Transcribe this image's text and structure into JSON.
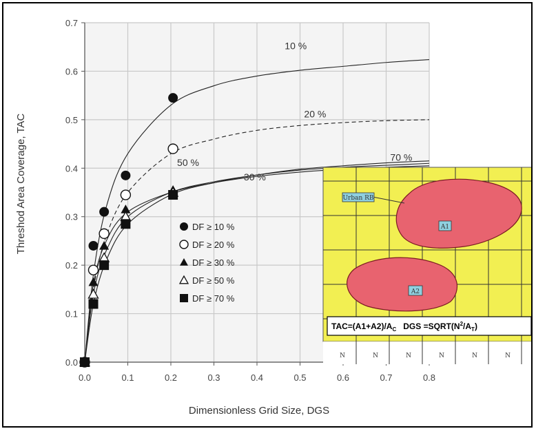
{
  "chart_data": {
    "type": "scatter",
    "xlabel": "Dimensionless Grid Size, DGS",
    "ylabel": "Threshod Area Coverage, TAC",
    "xlim": [
      0.0,
      0.8
    ],
    "ylim": [
      0.0,
      0.7
    ],
    "xticks": [
      "0.0",
      "0.1",
      "0.2",
      "0.3",
      "0.4",
      "0.5",
      "0.6",
      "0.7",
      "0.8"
    ],
    "yticks": [
      "0.0",
      "0.1",
      "0.2",
      "0.3",
      "0.4",
      "0.5",
      "0.6",
      "0.7"
    ],
    "grid": true,
    "series": [
      {
        "name": "DF ≥ 10 %",
        "marker": "filled-circle",
        "x": [
          0.0,
          0.02,
          0.045,
          0.095,
          0.205
        ],
        "y": [
          0.0,
          0.24,
          0.31,
          0.385,
          0.545
        ]
      },
      {
        "name": "DF ≥ 20 %",
        "marker": "open-circle",
        "x": [
          0.0,
          0.02,
          0.045,
          0.095,
          0.205
        ],
        "y": [
          0.0,
          0.19,
          0.265,
          0.345,
          0.44
        ]
      },
      {
        "name": "DF ≥ 30 %",
        "marker": "filled-triangle",
        "x": [
          0.0,
          0.02,
          0.045,
          0.095,
          0.205
        ],
        "y": [
          0.0,
          0.165,
          0.24,
          0.315,
          0.355
        ]
      },
      {
        "name": "DF ≥ 50 %",
        "marker": "open-triangle",
        "x": [
          0.0,
          0.02,
          0.045,
          0.095,
          0.205
        ],
        "y": [
          0.0,
          0.14,
          0.215,
          0.3,
          0.35
        ]
      },
      {
        "name": "DF ≥ 70 %",
        "marker": "filled-square",
        "x": [
          0.0,
          0.02,
          0.045,
          0.095,
          0.205
        ],
        "y": [
          0.0,
          0.12,
          0.2,
          0.285,
          0.345
        ]
      }
    ],
    "curves": [
      {
        "label": "10 %",
        "style": "solid",
        "x": [
          0.0,
          0.02,
          0.05,
          0.1,
          0.2,
          0.3,
          0.4,
          0.5,
          0.6,
          0.7,
          0.8
        ],
        "y": [
          0.0,
          0.18,
          0.32,
          0.43,
          0.53,
          0.57,
          0.59,
          0.602,
          0.61,
          0.618,
          0.624
        ]
      },
      {
        "label": "20 %",
        "style": "dashed",
        "x": [
          0.0,
          0.02,
          0.05,
          0.1,
          0.2,
          0.3,
          0.4,
          0.5,
          0.6,
          0.7,
          0.8
        ],
        "y": [
          0.0,
          0.15,
          0.26,
          0.35,
          0.43,
          0.46,
          0.478,
          0.488,
          0.494,
          0.498,
          0.5
        ]
      },
      {
        "label": "30 %",
        "style": "solid",
        "x": [
          0.0,
          0.02,
          0.05,
          0.1,
          0.2,
          0.3,
          0.4,
          0.5,
          0.6,
          0.7,
          0.8
        ],
        "y": [
          0.0,
          0.16,
          0.25,
          0.31,
          0.35,
          0.37,
          0.383,
          0.392,
          0.398,
          0.402,
          0.405
        ]
      },
      {
        "label": "50 %",
        "style": "solid",
        "x": [
          0.0,
          0.02,
          0.05,
          0.1,
          0.2,
          0.3,
          0.4,
          0.5,
          0.6,
          0.7,
          0.8
        ],
        "y": [
          0.0,
          0.14,
          0.23,
          0.3,
          0.35,
          0.372,
          0.386,
          0.396,
          0.402,
          0.406,
          0.41
        ]
      },
      {
        "label": "70 %",
        "style": "solid",
        "x": [
          0.0,
          0.02,
          0.05,
          0.1,
          0.2,
          0.3,
          0.4,
          0.5,
          0.6,
          0.7,
          0.8
        ],
        "y": [
          0.0,
          0.12,
          0.21,
          0.285,
          0.345,
          0.37,
          0.386,
          0.398,
          0.405,
          0.411,
          0.415
        ]
      }
    ],
    "legend_placement": "center"
  },
  "inset": {
    "callout_label": "Urban RB",
    "patch_labels": [
      "A1",
      "A2"
    ],
    "formula_tac": "TAC=(A1+A2)/A",
    "formula_tac_sub": "C",
    "formula_dgs": "DGS =SQRT(N",
    "formula_dgs_sup": "2",
    "formula_dgs_mid": "/A",
    "formula_dgs_sub": "T",
    "formula_dgs_end": ")",
    "n_labels": [
      "N",
      "N",
      "N",
      "N",
      "N",
      "N"
    ],
    "colors": {
      "background": "#f2ef52",
      "patch": "#e8636f",
      "grid": "#333333",
      "label_box": "#8fd0e0"
    }
  },
  "colors": {
    "plot_background": "#f4f4f4",
    "grid": "#c8c8c8",
    "marker": "#111111"
  }
}
